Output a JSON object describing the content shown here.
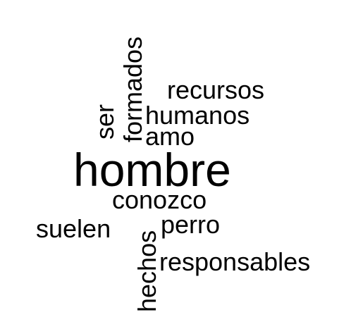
{
  "words": {
    "hombre": "hombre",
    "recursos": "recursos",
    "humanos": "humanos",
    "amo": "amo",
    "conozco": "conozco",
    "perro": "perro",
    "suelen": "suelen",
    "responsables": "responsables",
    "formados": "formados",
    "ser": "ser",
    "hechos": "hechos"
  },
  "colors": {
    "text": "#000000",
    "background": "#ffffff"
  }
}
